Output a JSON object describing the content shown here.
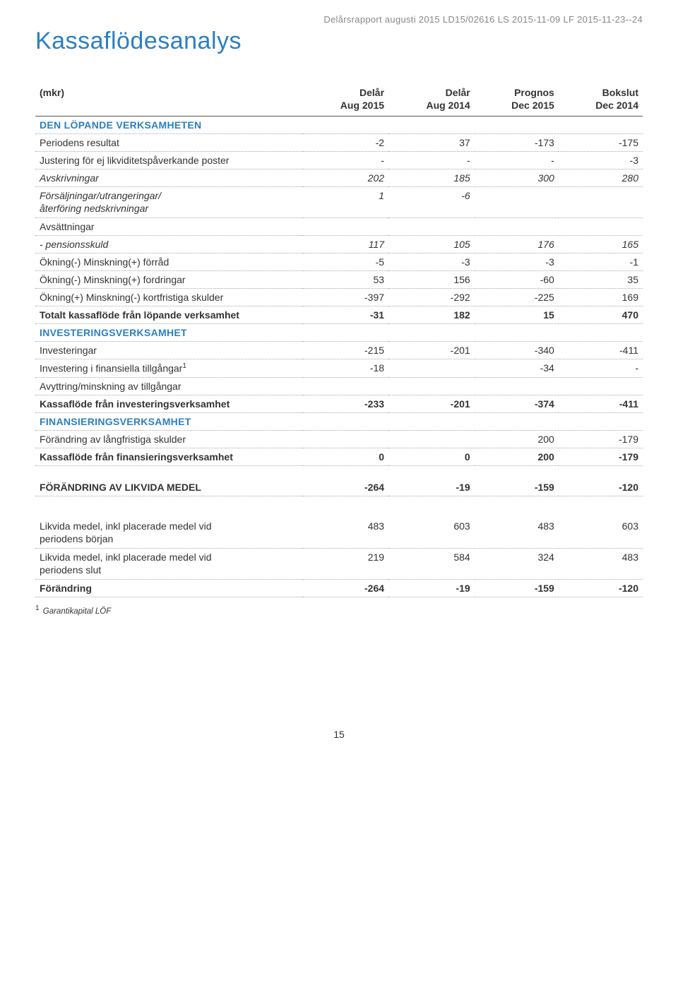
{
  "header_note": "Delårsrapport augusti 2015 LD15/02616 LS 2015-11-09 LF 2015-11-23--24",
  "page_title": "Kassaflödesanalys",
  "columns": {
    "unit": "(mkr)",
    "c1a": "Delår",
    "c1b": "Aug 2015",
    "c2a": "Delår",
    "c2b": "Aug 2014",
    "c3a": "Prognos",
    "c3b": "Dec 2015",
    "c4a": "Bokslut",
    "c4b": "Dec 2014"
  },
  "sections": {
    "s1": "DEN LÖPANDE VERKSAMHETEN",
    "s2": "INVESTERINGSVERKSAMHET",
    "s3": "FINANSIERINGSVERKSAMHET"
  },
  "rows": {
    "r1": {
      "l": "Periodens resultat",
      "v": [
        "-2",
        "37",
        "-173",
        "-175"
      ]
    },
    "r2": {
      "l": "Justering för ej likviditetspåverkande poster",
      "v": [
        "-",
        "-",
        "-",
        "-3"
      ]
    },
    "r3": {
      "l": "Avskrivningar",
      "v": [
        "202",
        "185",
        "300",
        "280"
      ]
    },
    "r4": {
      "l": "Försäljningar/utrangeringar/\nåterföring nedskrivningar",
      "v": [
        "1",
        "-6",
        "",
        ""
      ]
    },
    "r5": {
      "l": "Avsättningar",
      "v": [
        "",
        "",
        "",
        ""
      ]
    },
    "r6": {
      "l": "- pensionsskuld",
      "v": [
        "117",
        "105",
        "176",
        "165"
      ]
    },
    "r7": {
      "l": "Ökning(-) Minskning(+) förråd",
      "v": [
        "-5",
        "-3",
        "-3",
        "-1"
      ]
    },
    "r8": {
      "l": "Ökning(-) Minskning(+) fordringar",
      "v": [
        "53",
        "156",
        "-60",
        "35"
      ]
    },
    "r9": {
      "l": "Ökning(+) Minskning(-) kortfristiga skulder",
      "v": [
        "-397",
        "-292",
        "-225",
        "169"
      ]
    },
    "r10": {
      "l": "Totalt kassaflöde från löpande verksamhet",
      "v": [
        "-31",
        "182",
        "15",
        "470"
      ]
    },
    "r11": {
      "l": "Investeringar",
      "v": [
        "-215",
        "-201",
        "-340",
        "-411"
      ]
    },
    "r12": {
      "l": "Investering i finansiella tillgångar",
      "sup": "1",
      "v": [
        "-18",
        "",
        "-34",
        "-"
      ]
    },
    "r13": {
      "l": "Avyttring/minskning av tillgångar",
      "v": [
        "",
        "",
        "",
        ""
      ]
    },
    "r14": {
      "l": "Kassaflöde från investeringsverksamhet",
      "v": [
        "-233",
        "-201",
        "-374",
        "-411"
      ]
    },
    "r15": {
      "l": "Förändring av långfristiga skulder",
      "v": [
        "",
        "",
        "200",
        "-179"
      ]
    },
    "r16": {
      "l": "Kassaflöde från finansieringsverksamhet",
      "v": [
        "0",
        "0",
        "200",
        "-179"
      ]
    },
    "r17": {
      "l": "FÖRÄNDRING AV LIKVIDA MEDEL",
      "v": [
        "-264",
        "-19",
        "-159",
        "-120"
      ]
    },
    "r18": {
      "l": "Likvida medel, inkl placerade medel vid periodens början",
      "v": [
        "483",
        "603",
        "483",
        "603"
      ]
    },
    "r19": {
      "l": "Likvida medel, inkl placerade medel vid periodens slut",
      "v": [
        "219",
        "584",
        "324",
        "483"
      ]
    },
    "r20": {
      "l": "Förändring",
      "v": [
        "-264",
        "-19",
        "-159",
        "-120"
      ]
    }
  },
  "footnote": "Garantikapital LÖF",
  "page_number": "15",
  "colors": {
    "title": "#2a7fc4",
    "text": "#333333",
    "muted": "#888888",
    "dotted": "#aaaaaa",
    "border": "#555555"
  }
}
